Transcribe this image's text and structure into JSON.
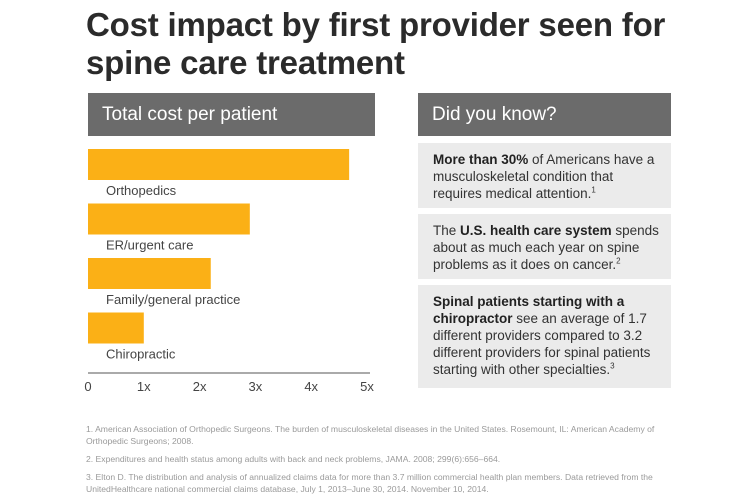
{
  "title": "Cost impact by first provider seen for spine care treatment",
  "chart_panel": {
    "header": "Total cost per patient"
  },
  "dyk_panel": {
    "header": "Did you know?",
    "facts": [
      {
        "bold": "More than 30%",
        "text": " of Americans have a musculoskeletal condition that requires medical attention.",
        "sup": "1"
      },
      {
        "pre": "The ",
        "bold": "U.S. health care system",
        "text": " spends about as much each year on spine problems as it does on cancer.",
        "sup": "2"
      },
      {
        "bold": "Spinal patients starting with a chiropractor",
        "text": " see an average of 1.7 different providers compared to 3.2 different providers for spinal patients starting with other specialties.",
        "sup": "3"
      }
    ]
  },
  "footnotes": [
    "1. American Association of Orthopedic Surgeons. The burden of musculoskeletal diseases in the United States. Rosemount, IL: American Academy of Orthopedic Surgeons; 2008.",
    "2. Expenditures and health status among adults with back and neck problems, JAMA. 2008; 299(6):656–664.",
    "3. Elton D. The distribution and analysis of annualized claims data for more than 3.7 million commercial health plan members. Data retrieved from the UnitedHealthcare national commercial claims database, July 1, 2013–June 30, 2014. November 10, 2014."
  ],
  "colors": {
    "bar": "#fbb016",
    "header_bg": "#6b6b6b",
    "fact_bg": "#ebebeb",
    "axis": "#555555"
  },
  "chart_data": {
    "type": "bar",
    "orientation": "horizontal",
    "categories": [
      "Orthopedics",
      "ER/urgent care",
      "Family/general practice",
      "Chiropractic"
    ],
    "values": [
      4.68,
      2.9,
      2.2,
      1.0
    ],
    "xlim": [
      0,
      5
    ],
    "xticks": [
      "0",
      "1x",
      "2x",
      "3x",
      "4x",
      "5x"
    ],
    "grid": false,
    "legend": "none"
  }
}
